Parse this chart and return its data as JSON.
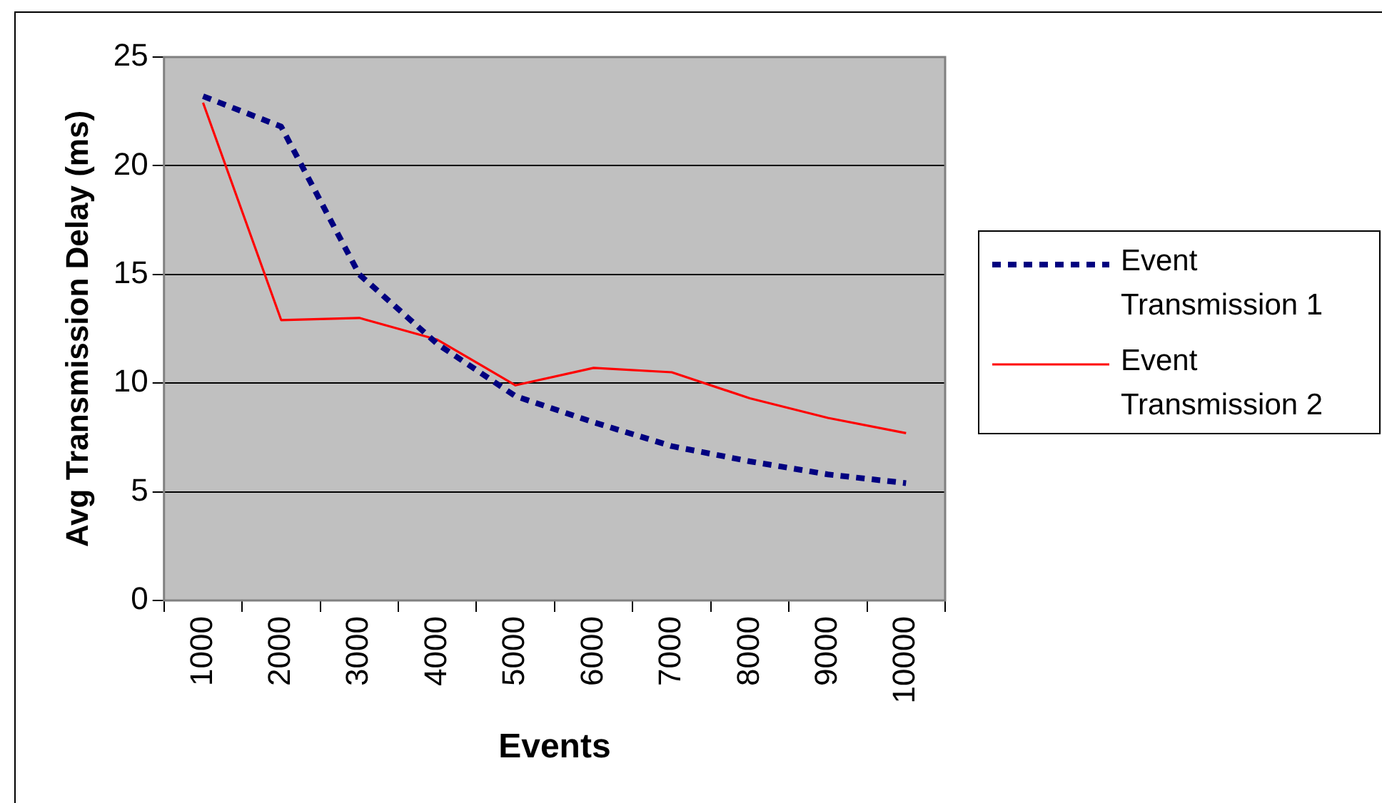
{
  "chart_data": {
    "type": "line",
    "xlabel": "Events",
    "ylabel": "Avg Transmission Delay (ms)",
    "categories": [
      "1000",
      "2000",
      "3000",
      "4000",
      "5000",
      "6000",
      "7000",
      "8000",
      "9000",
      "10000"
    ],
    "series": [
      {
        "name": "Event Transmission 1",
        "color": "#000080",
        "line_style": "dashed",
        "values": [
          23.2,
          21.8,
          15.0,
          11.8,
          9.4,
          8.2,
          7.1,
          6.4,
          5.8,
          5.4
        ]
      },
      {
        "name": "Event Transmission 2",
        "color": "#ff0000",
        "line_style": "solid",
        "values": [
          22.9,
          12.9,
          13.0,
          12.0,
          9.9,
          10.7,
          10.5,
          9.3,
          8.4,
          7.7
        ]
      }
    ],
    "ylim": [
      0,
      25
    ],
    "yticks": [
      0,
      5,
      10,
      15,
      20,
      25
    ],
    "grid": "y",
    "legend": "right",
    "marker": "none"
  }
}
